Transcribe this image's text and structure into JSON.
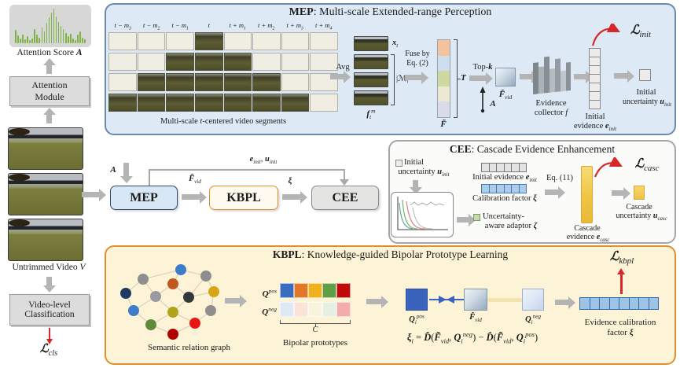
{
  "colors": {
    "mep_bg": "#dde9f5",
    "mep_border": "#7089a6",
    "cee_bg": "#fbfbf9",
    "cee_border": "#a6a6a6",
    "kbpl_bg": "#fdf3d7",
    "kbpl_border": "#e2902f",
    "accent_red": "#d62828",
    "histogram_green": "#7cb342",
    "cascade_yellow": "#f0c445",
    "calibration_blue": "#aecbe8",
    "prototype_blue": "#3a63bd"
  },
  "left": {
    "attention_score": [
      {
        "t": "Attention Score "
      },
      {
        "i": "A"
      }
    ],
    "histogram_bars": [
      38,
      22,
      14,
      26,
      12,
      20,
      10,
      14,
      40,
      26,
      16,
      46,
      34,
      60,
      74,
      88,
      100,
      78,
      62,
      50,
      40,
      30,
      20,
      28,
      14,
      10,
      24,
      34,
      16,
      12
    ],
    "attention_module": "Attention Module",
    "untrimmed_video": [
      {
        "t": "Untrimmed Video "
      },
      {
        "i": "V"
      }
    ],
    "video_classification": "Video-level Classification",
    "loss_cls": [
      {
        "i": "ℒ"
      },
      {
        "s": "cls"
      }
    ]
  },
  "pipeline": {
    "a_label": [
      {
        "i": "A"
      }
    ],
    "mep_label": "MEP",
    "kbpl_label": "KBPL",
    "cee_label": "CEE",
    "fvid_label": [
      {
        "i": "F̃"
      },
      {
        "s": "vid"
      }
    ],
    "xi_label": [
      {
        "i": "ξ"
      }
    ],
    "einit_uinit_label": [
      {
        "i": "e"
      },
      {
        "s": "init"
      },
      {
        "t": ", "
      },
      {
        "i": "u"
      },
      {
        "s": "init"
      }
    ]
  },
  "mep": {
    "title_bold": "MEP",
    "title_rest": ": Multi-scale Extended-range Perception",
    "time_labels": [
      [
        {
          "t": "t − m"
        },
        {
          "s": "3"
        }
      ],
      [
        {
          "t": "t − m"
        },
        {
          "s": "2"
        }
      ],
      [
        {
          "t": "t − m"
        },
        {
          "s": "1"
        }
      ],
      [
        {
          "t": "t"
        }
      ],
      [
        {
          "t": "t + m"
        },
        {
          "s": "1"
        }
      ],
      [
        {
          "t": "t + m"
        },
        {
          "s": "2"
        }
      ],
      [
        {
          "t": "t + m"
        },
        {
          "s": "3"
        }
      ],
      [
        {
          "t": "t + m"
        },
        {
          "s": "4"
        }
      ]
    ],
    "grid": {
      "cols": 8,
      "rows": [
        [
          3,
          3
        ],
        [
          2,
          4
        ],
        [
          1,
          5
        ],
        [
          0,
          6
        ]
      ]
    },
    "segments_caption": [
      {
        "t": "Multi-scale "
      },
      {
        "i": "t"
      },
      {
        "t": "-centered video segments"
      }
    ],
    "avg_label": "Avg",
    "xt_label": [
      {
        "i": "x"
      },
      {
        "s": "t"
      }
    ],
    "m_set_label": [
      {
        "t": "|ℳ|"
      }
    ],
    "ftm_label": [
      {
        "i": "f"
      },
      {
        "s": "t"
      },
      {
        "u": "m"
      }
    ],
    "fuse_line1": "Fuse by",
    "fuse_line2": "Eq. (2)",
    "f_tilde_label": [
      {
        "i": "F̃"
      }
    ],
    "t_label": [
      {
        "i": "T"
      }
    ],
    "topk_label": [
      {
        "t": "Top-"
      },
      {
        "i": "k"
      }
    ],
    "a_label": [
      {
        "i": "A"
      }
    ],
    "fvid_label": [
      {
        "i": "F̃"
      },
      {
        "s": "vid"
      }
    ],
    "fbar_colors": [
      "#f4c29c",
      "#cfdeee",
      "#cdd9a0",
      "#ece8d2",
      "#dadbe8"
    ],
    "collector_line1": "Evidence",
    "collector_line2": [
      {
        "t": "collector "
      },
      {
        "i": "f"
      }
    ],
    "evidence_cells": 7,
    "initial_evidence_line1": "Initial",
    "initial_evidence_line2": [
      {
        "t": "evidence "
      },
      {
        "i": "e"
      },
      {
        "s": "init"
      }
    ],
    "loss_init": [
      {
        "i": "ℒ"
      },
      {
        "s": "init"
      }
    ],
    "initial_uncertainty_line1": "Initial",
    "initial_uncertainty_line2": [
      {
        "t": "uncertainty "
      },
      {
        "i": "u"
      },
      {
        "s": "init"
      }
    ]
  },
  "cee": {
    "title_bold": "CEE",
    "title_rest": ": Cascade Evidence Enhancement",
    "initial_uncertainty_line1": "Initial",
    "initial_uncertainty_line2": [
      {
        "t": "uncertainty "
      },
      {
        "i": "u"
      },
      {
        "s": "init"
      }
    ],
    "initial_evidence_label": [
      {
        "t": "Initial evidence "
      },
      {
        "i": "e"
      },
      {
        "s": "init"
      }
    ],
    "evidence_cells": 6,
    "calibration_cells": 6,
    "calibration_label": [
      {
        "t": "Calibration factor "
      },
      {
        "i": "ξ"
      }
    ],
    "adaptor_line1": "Uncertainty-",
    "adaptor_line2": [
      {
        "t": "aware adaptor "
      },
      {
        "i": "ζ"
      }
    ],
    "eq11_label": "Eq. (11)",
    "cascade_evidence_line1": "Cascade",
    "cascade_evidence_line2": [
      {
        "t": "evidence "
      },
      {
        "i": "e"
      },
      {
        "s": "casc"
      }
    ],
    "loss_casc": [
      {
        "i": "ℒ"
      },
      {
        "s": "casc"
      }
    ],
    "cascade_uncertainty_line1": "Cascade",
    "cascade_uncertainty_line2": [
      {
        "t": "uncertainty "
      },
      {
        "i": "u"
      },
      {
        "s": "casc"
      }
    ]
  },
  "kbpl": {
    "title_bold": "KBPL",
    "title_rest": ": Knowledge-guided Bipolar Prototype Learning",
    "graph_caption": "Semantic relation graph",
    "qpos_label": [
      {
        "i": "Q"
      },
      {
        "u": "pos"
      }
    ],
    "qneg_label": [
      {
        "i": "Q"
      },
      {
        "u": "neg"
      }
    ],
    "pos_colors": [
      "#3a6cc0",
      "#e07828",
      "#f0b11e",
      "#5f9e43",
      "#c00a0a"
    ],
    "neg_colors": [
      "#dfe9f6",
      "#fbe3d8",
      "#faf3dc",
      "#e6f0e2",
      "#f5abab"
    ],
    "c_label": [
      {
        "i": "C"
      }
    ],
    "prototypes_caption": "Bipolar prototypes",
    "qipos_label": [
      {
        "i": "Q"
      },
      {
        "s": "i"
      },
      {
        "u": "pos"
      }
    ],
    "fvid_label": [
      {
        "i": "F̃"
      },
      {
        "s": "vid"
      }
    ],
    "qineg_label": [
      {
        "i": "Q"
      },
      {
        "s": "i"
      },
      {
        "u": "neg"
      }
    ],
    "formula": [
      {
        "i": "ξ"
      },
      {
        "s": "i"
      },
      {
        "t": " = "
      },
      {
        "i": "D̂"
      },
      {
        "t": "("
      },
      {
        "i": "F̃"
      },
      {
        "s": "vid"
      },
      {
        "t": ", "
      },
      {
        "i": "Q"
      },
      {
        "s": "i"
      },
      {
        "u": "neg"
      },
      {
        "t": ") − "
      },
      {
        "i": "D̂"
      },
      {
        "t": "("
      },
      {
        "i": "F̃"
      },
      {
        "s": "vid"
      },
      {
        "t": ", "
      },
      {
        "i": "Q"
      },
      {
        "s": "i"
      },
      {
        "u": "pos"
      },
      {
        "t": ")"
      }
    ],
    "loss_kbpl": [
      {
        "i": "ℒ"
      },
      {
        "s": "kbpl"
      }
    ],
    "calibration_cells": 8,
    "calibration_line1": "Evidence calibration",
    "calibration_line2": [
      {
        "t": "factor "
      },
      {
        "i": "ξ"
      }
    ]
  }
}
